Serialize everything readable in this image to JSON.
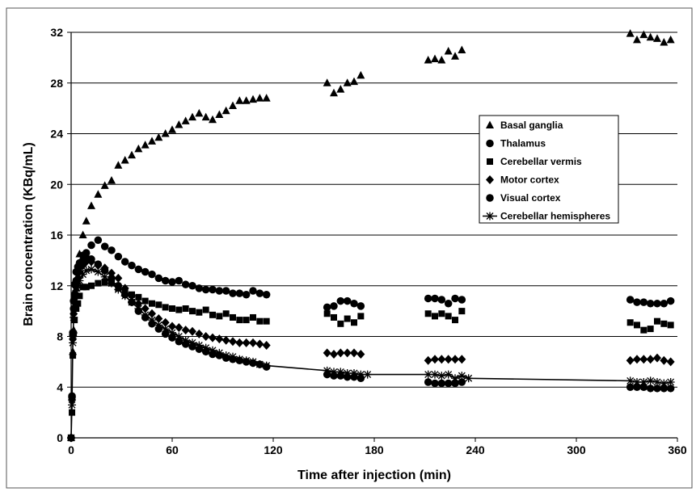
{
  "chart_data": {
    "type": "scatter",
    "title": "",
    "xlabel": "Time after injection (min)",
    "ylabel": "Brain concentration  (KBq/mL)",
    "xlim": [
      0,
      360
    ],
    "ylim": [
      0,
      32
    ],
    "xticks": [
      0,
      60,
      120,
      180,
      240,
      300,
      360
    ],
    "yticks": [
      0,
      4,
      8,
      12,
      16,
      20,
      24,
      28,
      32
    ],
    "grid": "horizontal",
    "legend": "right",
    "series": [
      {
        "name": "Basal ganglia",
        "marker": "triangle",
        "line": false,
        "x": [
          0,
          0.5,
          1,
          1.5,
          2,
          3,
          4,
          5,
          7,
          9,
          12,
          16,
          20,
          24,
          28,
          32,
          36,
          40,
          44,
          48,
          52,
          56,
          60,
          64,
          68,
          72,
          76,
          80,
          84,
          88,
          92,
          96,
          100,
          104,
          108,
          112,
          116,
          152,
          156,
          160,
          164,
          168,
          172,
          212,
          216,
          220,
          224,
          228,
          232,
          332,
          336,
          340,
          344,
          348,
          352,
          356
        ],
        "y": [
          0,
          3.2,
          6.8,
          8.5,
          10.2,
          11.8,
          12.8,
          14.5,
          16,
          17.1,
          18.3,
          19.2,
          19.9,
          20.3,
          21.5,
          21.9,
          22.3,
          22.8,
          23.1,
          23.4,
          23.7,
          24,
          24.3,
          24.7,
          25,
          25.3,
          25.6,
          25.3,
          25.1,
          25.5,
          25.8,
          26.2,
          26.6,
          26.6,
          26.7,
          26.8,
          26.8,
          28,
          27.2,
          27.5,
          28,
          28.1,
          28.6,
          29.8,
          29.9,
          29.8,
          30.5,
          30.1,
          30.6,
          31.9,
          31.4,
          31.8,
          31.6,
          31.5,
          31.2,
          31.4
        ]
      },
      {
        "name": "Thalamus",
        "marker": "circle",
        "line": false,
        "x": [
          0,
          0.5,
          1,
          1.5,
          2,
          3,
          4,
          5,
          7,
          9,
          12,
          16,
          20,
          24,
          28,
          32,
          36,
          40,
          44,
          48,
          52,
          56,
          60,
          64,
          68,
          72,
          76,
          80,
          84,
          88,
          92,
          96,
          100,
          104,
          108,
          112,
          116,
          152,
          156,
          160,
          164,
          168,
          172,
          212,
          216,
          220,
          224,
          228,
          232,
          332,
          336,
          340,
          344,
          348,
          352,
          356
        ],
        "y": [
          0,
          3.2,
          8.3,
          10.8,
          12.1,
          13.1,
          13.5,
          13.8,
          14.4,
          14.6,
          15.2,
          15.6,
          15.1,
          14.8,
          14.3,
          13.9,
          13.6,
          13.3,
          13.1,
          12.9,
          12.6,
          12.4,
          12.3,
          12.4,
          12.1,
          12,
          11.8,
          11.7,
          11.7,
          11.6,
          11.6,
          11.4,
          11.4,
          11.3,
          11.6,
          11.4,
          11.3,
          10.3,
          10.4,
          10.8,
          10.8,
          10.6,
          10.4,
          11,
          11,
          10.9,
          10.6,
          11,
          10.9,
          10.9,
          10.7,
          10.7,
          10.6,
          10.6,
          10.6,
          10.8
        ]
      },
      {
        "name": "Cerebellar vermis",
        "marker": "square",
        "line": false,
        "x": [
          0,
          0.5,
          1,
          1.5,
          2,
          3,
          4,
          5,
          7,
          9,
          12,
          16,
          20,
          24,
          28,
          32,
          36,
          40,
          44,
          48,
          52,
          56,
          60,
          64,
          68,
          72,
          76,
          80,
          84,
          88,
          92,
          96,
          100,
          104,
          108,
          112,
          116,
          152,
          156,
          160,
          164,
          168,
          172,
          212,
          216,
          220,
          224,
          228,
          232,
          332,
          336,
          340,
          344,
          348,
          352,
          356
        ],
        "y": [
          0,
          2,
          6.5,
          8.2,
          9.3,
          10.2,
          10.6,
          11.2,
          11.9,
          11.9,
          12,
          12.2,
          12.3,
          12.2,
          11.8,
          11.6,
          11.3,
          11.1,
          10.8,
          10.6,
          10.5,
          10.3,
          10.2,
          10.1,
          10.2,
          10,
          9.9,
          10.1,
          9.7,
          9.6,
          9.8,
          9.5,
          9.3,
          9.3,
          9.5,
          9.2,
          9.2,
          9.8,
          9.5,
          9,
          9.4,
          9.1,
          9.6,
          9.8,
          9.6,
          9.8,
          9.6,
          9.3,
          10,
          9.1,
          8.9,
          8.5,
          8.6,
          9.2,
          9,
          8.9
        ]
      },
      {
        "name": "Motor cortex",
        "marker": "diamond",
        "line": false,
        "x": [
          0,
          0.5,
          1,
          1.5,
          2,
          3,
          4,
          5,
          7,
          9,
          12,
          16,
          20,
          24,
          28,
          32,
          36,
          40,
          44,
          48,
          52,
          56,
          60,
          64,
          68,
          72,
          76,
          80,
          84,
          88,
          92,
          96,
          100,
          104,
          108,
          112,
          116,
          152,
          156,
          160,
          164,
          168,
          172,
          212,
          216,
          220,
          224,
          228,
          232,
          332,
          336,
          340,
          344,
          348,
          352,
          356
        ],
        "y": [
          0,
          3,
          7.8,
          9.8,
          11,
          12,
          12.6,
          13.1,
          13.6,
          13.9,
          13.9,
          13.6,
          13.4,
          13,
          12.6,
          11.8,
          11.2,
          10.6,
          10.2,
          9.8,
          9.4,
          9.1,
          8.8,
          8.7,
          8.5,
          8.4,
          8.2,
          8,
          7.9,
          7.8,
          7.7,
          7.6,
          7.5,
          7.5,
          7.5,
          7.4,
          7.3,
          6.7,
          6.6,
          6.7,
          6.7,
          6.7,
          6.6,
          6.1,
          6.2,
          6.2,
          6.2,
          6.2,
          6.2,
          6.1,
          6.2,
          6.2,
          6.2,
          6.3,
          6.1,
          6
        ]
      },
      {
        "name": "Visual cortex",
        "marker": "circle",
        "line": false,
        "x": [
          0,
          0.5,
          1,
          1.5,
          2,
          3,
          4,
          5,
          7,
          9,
          12,
          16,
          20,
          24,
          28,
          32,
          36,
          40,
          44,
          48,
          52,
          56,
          60,
          64,
          68,
          72,
          76,
          80,
          84,
          88,
          92,
          96,
          100,
          104,
          108,
          112,
          116,
          152,
          156,
          160,
          164,
          168,
          172,
          212,
          216,
          220,
          224,
          228,
          232,
          332,
          336,
          340,
          344,
          348,
          352,
          356
        ],
        "y": [
          0,
          3.3,
          8.1,
          10.2,
          11.3,
          12.4,
          13.1,
          13.5,
          14,
          14.2,
          14.1,
          13.7,
          13.2,
          12.6,
          12,
          11.3,
          10.7,
          10,
          9.5,
          9,
          8.6,
          8.2,
          7.9,
          7.6,
          7.4,
          7.2,
          7,
          6.8,
          6.6,
          6.5,
          6.3,
          6.2,
          6.1,
          6,
          5.9,
          5.8,
          5.6,
          5,
          4.9,
          4.9,
          4.8,
          4.8,
          4.7,
          4.4,
          4.3,
          4.3,
          4.3,
          4.3,
          4.4,
          4,
          4,
          4,
          3.9,
          3.9,
          3.9,
          3.9
        ]
      },
      {
        "name": "Cerebellar hemispheres",
        "marker": "asterisk",
        "line": true,
        "x": [
          0,
          0.5,
          1,
          1.5,
          2,
          3,
          4,
          5,
          7,
          9,
          12,
          16,
          20,
          24,
          28,
          32,
          36,
          40,
          44,
          48,
          52,
          56,
          60,
          64,
          68,
          72,
          76,
          80,
          84,
          88,
          92,
          96,
          100,
          104,
          108,
          112,
          116,
          152,
          156,
          160,
          164,
          168,
          172,
          176,
          212,
          216,
          220,
          224,
          228,
          232,
          236,
          332,
          336,
          340,
          344,
          348,
          352,
          356
        ],
        "y": [
          0,
          2.6,
          7.5,
          9.5,
          10.6,
          11.6,
          12,
          12.4,
          12.9,
          13.2,
          13.3,
          13.1,
          12.7,
          12.2,
          11.7,
          11.2,
          10.7,
          10.2,
          9.7,
          9.3,
          8.9,
          8.6,
          8.3,
          8,
          7.7,
          7.5,
          7.3,
          7.1,
          6.9,
          6.7,
          6.5,
          6.4,
          6.2,
          6.1,
          6,
          5.8,
          5.7,
          5.3,
          5.2,
          5.2,
          5.1,
          5.1,
          5,
          5,
          5,
          5,
          4.9,
          5,
          4.7,
          4.9,
          4.7,
          4.5,
          4.4,
          4.4,
          4.5,
          4.4,
          4.3,
          4.4
        ]
      }
    ]
  }
}
